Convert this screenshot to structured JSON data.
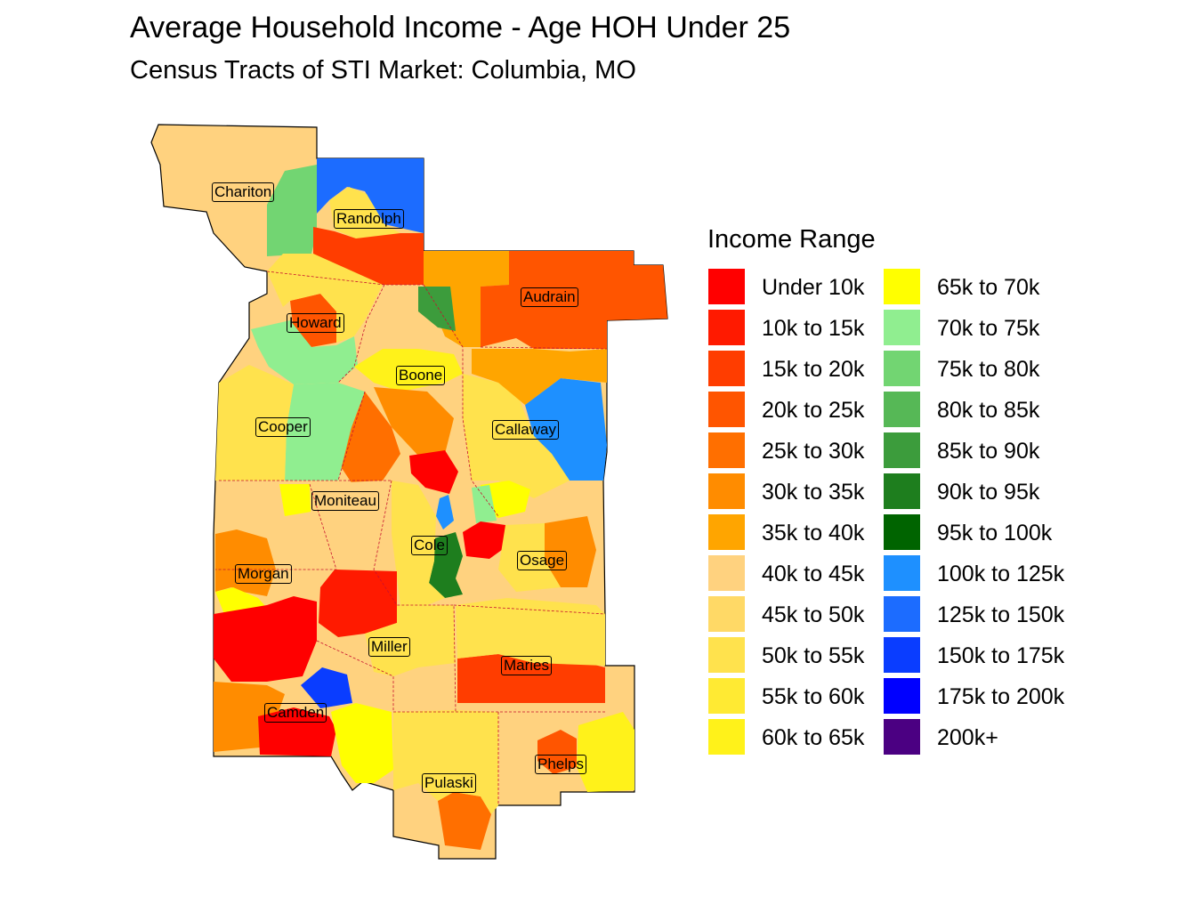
{
  "title": "Average Household Income - Age HOH Under 25",
  "subtitle": "Census Tracts of STI Market: Columbia, MO",
  "legend": {
    "title": "Income Range",
    "items": [
      {
        "label": "Under 10k",
        "color": "#ff0000"
      },
      {
        "label": "10k to 15k",
        "color": "#ff1a00"
      },
      {
        "label": "15k to 20k",
        "color": "#ff3d00"
      },
      {
        "label": "20k to 25k",
        "color": "#ff5500"
      },
      {
        "label": "25k to 30k",
        "color": "#ff6f00"
      },
      {
        "label": "30k to 35k",
        "color": "#ff8c00"
      },
      {
        "label": "35k to 40k",
        "color": "#ffa500"
      },
      {
        "label": "40k to 45k",
        "color": "#ffd27f"
      },
      {
        "label": "45k to 50k",
        "color": "#ffd966"
      },
      {
        "label": "50k to 55k",
        "color": "#ffe24d"
      },
      {
        "label": "55k to 60k",
        "color": "#ffea33"
      },
      {
        "label": "60k to 65k",
        "color": "#fff21a"
      },
      {
        "label": "65k to 70k",
        "color": "#ffff00"
      },
      {
        "label": "70k to 75k",
        "color": "#90ee90"
      },
      {
        "label": "75k to 80k",
        "color": "#72d572"
      },
      {
        "label": "80k to 85k",
        "color": "#56b856"
      },
      {
        "label": "85k to 90k",
        "color": "#3c9c3c"
      },
      {
        "label": "90k to 95k",
        "color": "#1e7e1e"
      },
      {
        "label": "95k to 100k",
        "color": "#006400"
      },
      {
        "label": "100k to 125k",
        "color": "#1e90ff"
      },
      {
        "label": "125k to 150k",
        "color": "#1c6cff"
      },
      {
        "label": "150k to 175k",
        "color": "#0a3dff"
      },
      {
        "label": "175k to 200k",
        "color": "#0000ff"
      },
      {
        "label": "200k+",
        "color": "#4b0082"
      }
    ]
  },
  "counties": [
    {
      "name": "Chariton"
    },
    {
      "name": "Randolph"
    },
    {
      "name": "Audrain"
    },
    {
      "name": "Howard"
    },
    {
      "name": "Boone"
    },
    {
      "name": "Cooper"
    },
    {
      "name": "Callaway"
    },
    {
      "name": "Moniteau"
    },
    {
      "name": "Cole"
    },
    {
      "name": "Osage"
    },
    {
      "name": "Morgan"
    },
    {
      "name": "Miller"
    },
    {
      "name": "Maries"
    },
    {
      "name": "Camden"
    },
    {
      "name": "Phelps"
    },
    {
      "name": "Pulaski"
    }
  ]
}
